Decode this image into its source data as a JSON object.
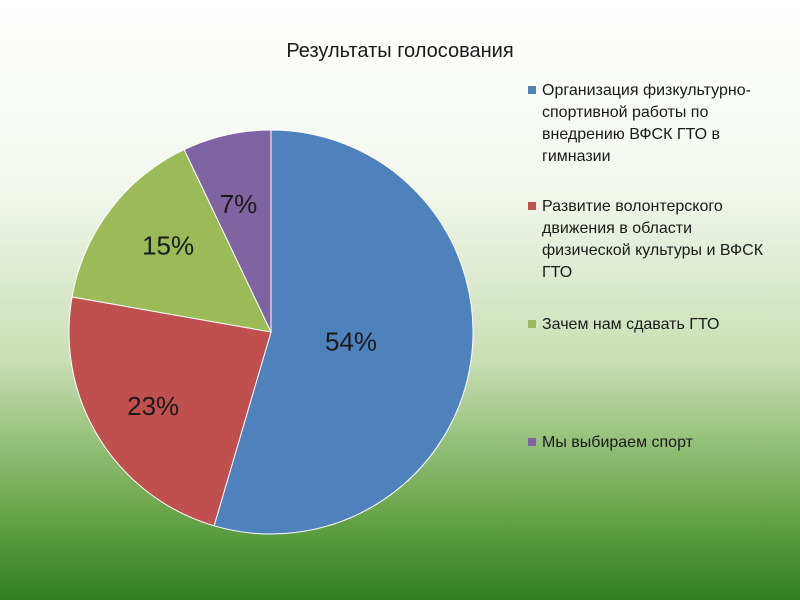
{
  "chart_data": {
    "type": "pie",
    "title": "Результаты голосования",
    "categories": [
      "Организация физкультурно-спортивной работы по внедрению ВФСК ГТО в гимназии",
      "Развитие волонтерского движения в области физической культуры и ВФСК  ГТО",
      "Зачем нам сдавать ГТО",
      "Мы выбираем спорт"
    ],
    "values": [
      54,
      23,
      15,
      7
    ],
    "data_labels": [
      "54%",
      "23%",
      "15%",
      "7%"
    ],
    "colors": [
      "#4f81bd",
      "#c0504d",
      "#9bbb59",
      "#8064a2"
    ],
    "legend_position": "right"
  }
}
